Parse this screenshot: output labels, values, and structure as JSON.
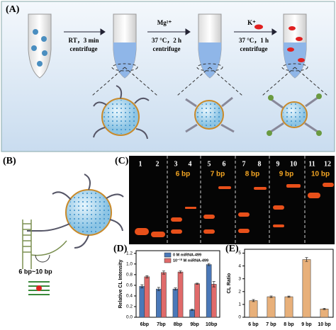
{
  "panel_a": {
    "label": "(A)",
    "step1": [
      "RT，3 min",
      "centrifuge"
    ],
    "step2": [
      "Mg²⁺",
      "37 °C，2 h",
      "centrifuge"
    ],
    "step3": [
      "K⁺",
      "37 °C，1 h",
      "centrifuge"
    ]
  },
  "panel_b": {
    "label": "(B)",
    "note": "6 bp~10 bp"
  },
  "panel_c": {
    "label": "(C)",
    "lanes": [
      "1",
      "2",
      "3",
      "4",
      "5",
      "6",
      "7",
      "8",
      "9",
      "10",
      "11",
      "12"
    ],
    "groups": [
      "6 bp",
      "7 bp",
      "8 bp",
      "9 bp",
      "10 bp"
    ]
  },
  "chart_data": [
    {
      "type": "bar",
      "panel_label": "(D)",
      "y_label": "Relative CL Intensity",
      "categories": [
        "6bp",
        "7bp",
        "8bp",
        "9bp",
        "10bp"
      ],
      "series": [
        {
          "name": "0 M miRNA-499",
          "color": "#4a78b8",
          "values": [
            0.58,
            0.53,
            0.53,
            0.14,
            0.99
          ],
          "errors": [
            0.03,
            0.03,
            0.02,
            0.01,
            0.02
          ]
        },
        {
          "name": "10⁻¹⁰ M miRNA-499",
          "color": "#e06a6a",
          "values": [
            0.76,
            0.84,
            0.85,
            0.63,
            0.62
          ],
          "errors": [
            0.02,
            0.03,
            0.02,
            0.01,
            0.05
          ]
        }
      ],
      "ylim": [
        0,
        1.25
      ],
      "yticks": [
        {
          "value": 0,
          "label": "0.0"
        },
        {
          "value": 0.2,
          "label": "0.2"
        },
        {
          "value": 0.4,
          "label": "0.4"
        },
        {
          "value": 0.6,
          "label": "0.6"
        },
        {
          "value": 0.8,
          "label": "0.8"
        },
        {
          "value": 1,
          "label": "1.0"
        },
        {
          "value": 1.2,
          "label": "1.2"
        }
      ]
    },
    {
      "type": "bar",
      "panel_label": "(E)",
      "y_label": "CL Ratio",
      "categories": [
        "6 bp",
        "7 bp",
        "8 bp",
        "9 bp",
        "10 bp"
      ],
      "values": [
        1.3,
        1.6,
        1.6,
        4.5,
        0.65
      ],
      "errors": [
        0.08,
        0.06,
        0.05,
        0.15,
        0.05
      ],
      "color": "#e8b07a",
      "ylim": [
        0,
        5.3
      ],
      "yticks": [
        0,
        1,
        2,
        3,
        4,
        5
      ]
    }
  ]
}
